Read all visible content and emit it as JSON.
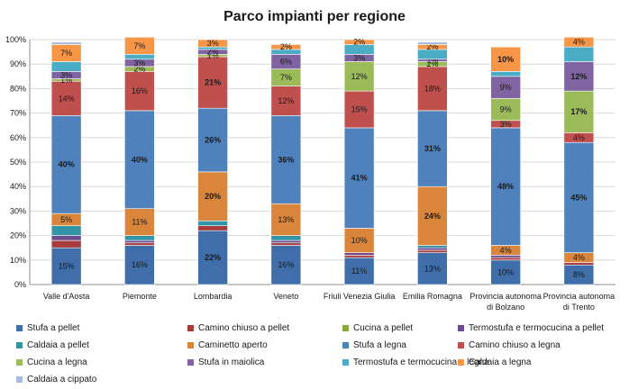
{
  "chart_data": {
    "type": "bar",
    "stacked": "percent",
    "title": "Parco impianti per regione",
    "xlabel": "",
    "ylabel": "",
    "ylim": [
      0,
      100
    ],
    "yticks": [
      "0%",
      "10%",
      "20%",
      "30%",
      "40%",
      "50%",
      "60%",
      "70%",
      "80%",
      "90%",
      "100%"
    ],
    "grid": true,
    "legend_position": "bottom",
    "categories": [
      [
        "Valle d'Aosta"
      ],
      [
        "Piemonte"
      ],
      [
        "Lombardia"
      ],
      [
        "Veneto"
      ],
      [
        "Friuli Venezia Giulia"
      ],
      [
        "Emilia Romagna"
      ],
      [
        "Provincia autonoma",
        "di Bolzano"
      ],
      [
        "Provincia autonoma",
        "di Trento"
      ]
    ],
    "series": [
      {
        "name": "Stufa a pellet",
        "color": "#3f6eaa",
        "values": [
          15,
          16,
          22,
          16,
          11,
          13,
          10,
          8
        ]
      },
      {
        "name": "Camino chiuso a pellet",
        "color": "#a83b3b",
        "values": [
          3,
          1,
          2,
          1,
          1,
          1,
          1,
          1
        ]
      },
      {
        "name": "Cucina a pellet",
        "color": "#86a83d",
        "values": [
          0,
          0,
          0,
          0,
          0,
          0,
          0,
          0
        ]
      },
      {
        "name": "Termostufa e termocucina a pellet",
        "color": "#6b4c8c",
        "values": [
          2,
          1,
          0,
          1,
          1,
          1,
          1,
          0
        ]
      },
      {
        "name": "Caldaia a pellet",
        "color": "#3394a8",
        "values": [
          4,
          2,
          2,
          2,
          0,
          1,
          0,
          0
        ]
      },
      {
        "name": "Caminetto aperto",
        "color": "#d9853b",
        "values": [
          5,
          11,
          20,
          13,
          10,
          24,
          4,
          4
        ]
      },
      {
        "name": "Stufa a legna",
        "color": "#4f81bd",
        "values": [
          40,
          40,
          26,
          36,
          41,
          31,
          48,
          45
        ]
      },
      {
        "name": "Camino chiuso a legna",
        "color": "#c0504d",
        "values": [
          14,
          16,
          21,
          12,
          15,
          18,
          3,
          4
        ]
      },
      {
        "name": "Cucina a legna",
        "color": "#9bbb59",
        "values": [
          1,
          2,
          1,
          7,
          12,
          2,
          9,
          17
        ]
      },
      {
        "name": "Stufa in maiolica",
        "color": "#8064a2",
        "values": [
          3,
          3,
          2,
          6,
          3,
          1,
          9,
          12
        ]
      },
      {
        "name": "Termostufa e termocucina a legna",
        "color": "#4bacc6",
        "values": [
          4,
          2,
          1,
          2,
          4,
          4,
          2,
          6
        ]
      },
      {
        "name": "Caldaia a legna",
        "color": "#f79646",
        "values": [
          7,
          7,
          3,
          2,
          2,
          2,
          10,
          4
        ]
      },
      {
        "name": "Caldaia a cippato",
        "color": "#a6bddb",
        "values": [
          1,
          0,
          0,
          0,
          0,
          1,
          0,
          0
        ]
      }
    ],
    "data_labels": {
      "Stufa a pellet": [
        "15%",
        "16%",
        "22%",
        "16%",
        "11%",
        "13%",
        "10%",
        "8%"
      ],
      "Caminetto aperto": [
        "5%",
        "11%",
        "20%",
        "13%",
        "10%",
        "24%",
        "4%",
        "4%"
      ],
      "Stufa a legna": [
        "40%",
        "40%",
        "26%",
        "36%",
        "41%",
        "31%",
        "48%",
        "45%"
      ],
      "Camino chiuso a legna": [
        "14%",
        "16%",
        "21%",
        "12%",
        "15%",
        "18%",
        "3%",
        "4%"
      ],
      "Cucina a legna": [
        "1%",
        "2%",
        "1%",
        "7%",
        "12%",
        "2%",
        "9%",
        "17%"
      ],
      "Stufa in maiolica": [
        "3%",
        "3%",
        "2%",
        "6%",
        "3%",
        "1%",
        "9%",
        "12%"
      ],
      "Caldaia a legna": [
        "7%",
        "7%",
        "3%",
        "2%",
        "2%",
        "2%",
        "10%",
        "4%"
      ]
    }
  }
}
